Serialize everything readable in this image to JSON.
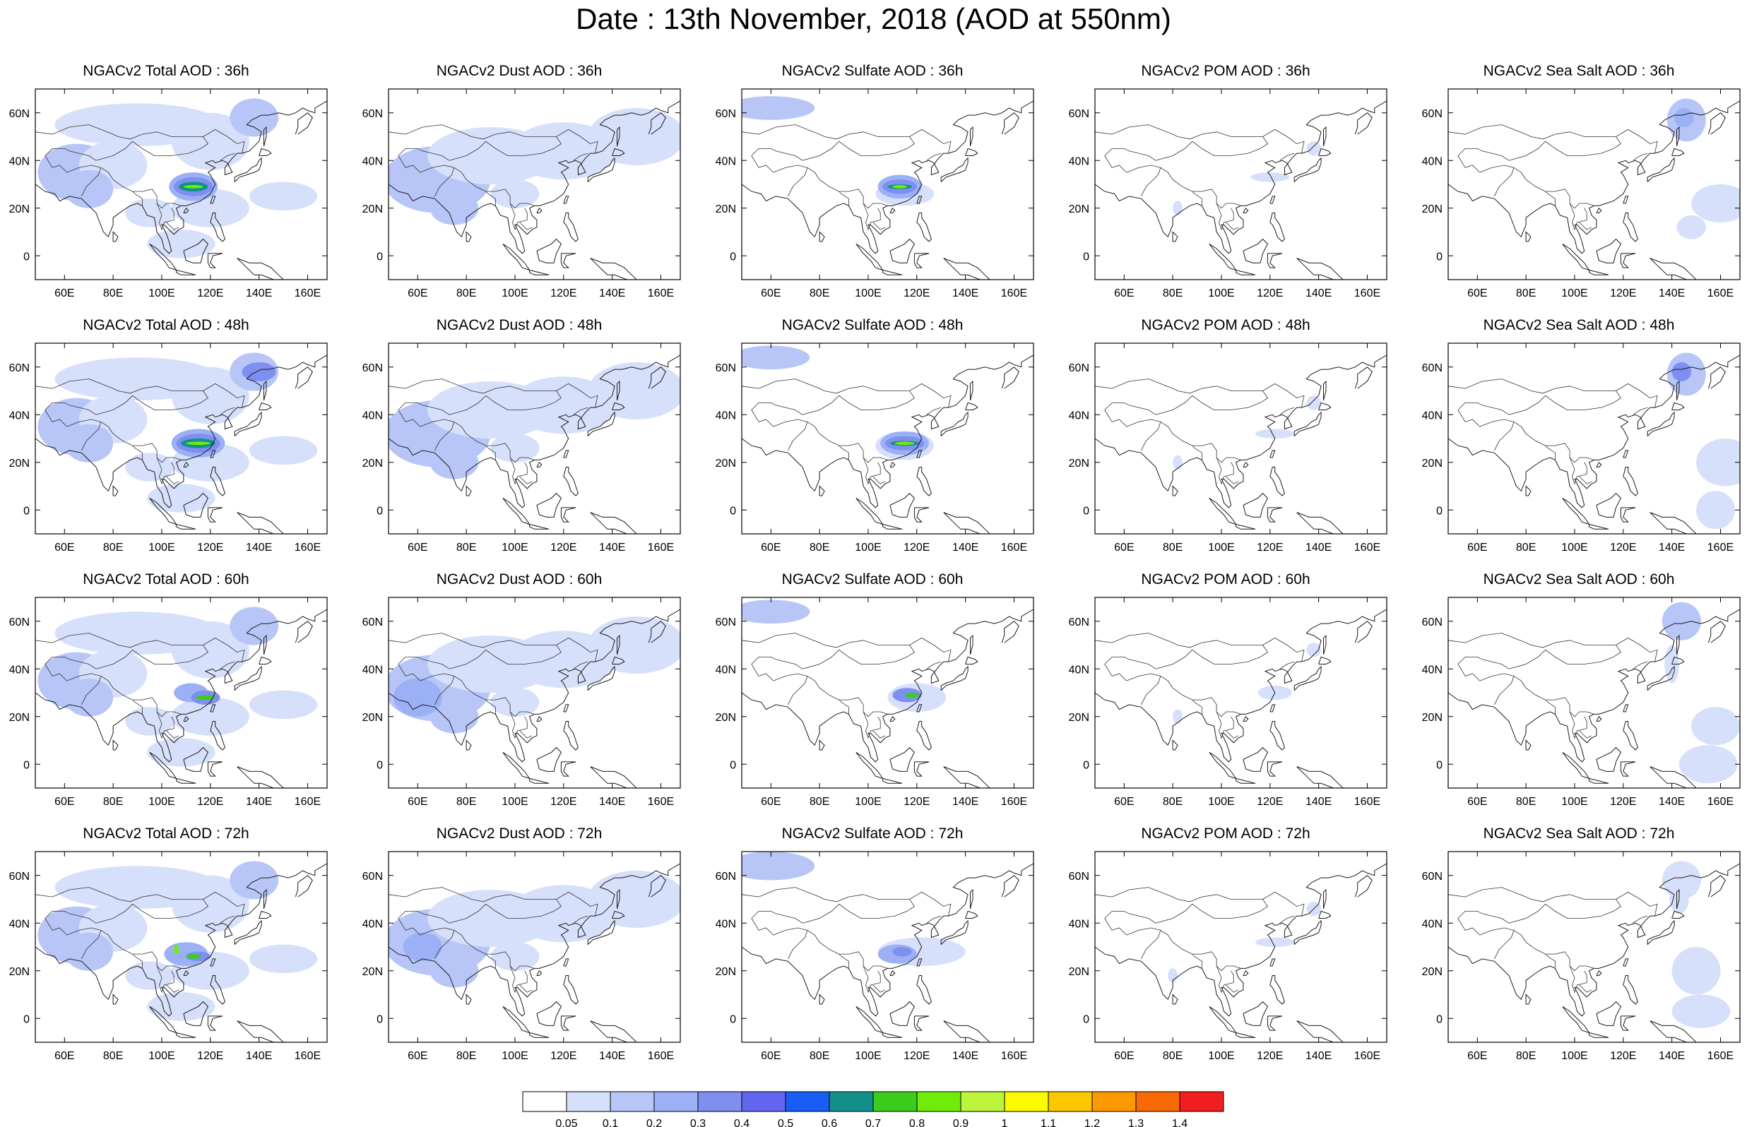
{
  "title": "Date : 13th November, 2018 (AOD at 550nm)",
  "map_axes": {
    "lon_labels": [
      "60E",
      "80E",
      "100E",
      "120E",
      "140E",
      "160E"
    ],
    "lat_labels": [
      "60N",
      "40N",
      "20N",
      "0"
    ],
    "lon_range": [
      48,
      168
    ],
    "lat_range": [
      -10,
      70
    ]
  },
  "panels": [
    {
      "title": "NGACv2 Total AOD : 36h"
    },
    {
      "title": "NGACv2 Dust AOD : 36h"
    },
    {
      "title": "NGACv2 Sulfate AOD : 36h"
    },
    {
      "title": "NGACv2 POM AOD : 36h"
    },
    {
      "title": "NGACv2 Sea Salt AOD : 36h"
    },
    {
      "title": "NGACv2 Total AOD : 48h"
    },
    {
      "title": "NGACv2 Dust AOD : 48h"
    },
    {
      "title": "NGACv2 Sulfate AOD : 48h"
    },
    {
      "title": "NGACv2 POM AOD : 48h"
    },
    {
      "title": "NGACv2 Sea Salt AOD : 48h"
    },
    {
      "title": "NGACv2 Total AOD : 60h"
    },
    {
      "title": "NGACv2 Dust AOD : 60h"
    },
    {
      "title": "NGACv2 Sulfate AOD : 60h"
    },
    {
      "title": "NGACv2 POM AOD : 60h"
    },
    {
      "title": "NGACv2 Sea Salt AOD : 60h"
    },
    {
      "title": "NGACv2 Total AOD : 72h"
    },
    {
      "title": "NGACv2 Dust AOD : 72h"
    },
    {
      "title": "NGACv2 Sulfate AOD : 72h"
    },
    {
      "title": "NGACv2 POM AOD : 72h"
    },
    {
      "title": "NGACv2 Sea Salt  AOD : 72h"
    }
  ],
  "colorbar": {
    "labels": [
      "0.05",
      "0.1",
      "0.2",
      "0.3",
      "0.4",
      "0.5",
      "0.6",
      "0.7",
      "0.8",
      "0.9",
      "1",
      "1.1",
      "1.2",
      "1.3",
      "1.4"
    ],
    "colors": [
      "#ffffff",
      "#d7e0fb",
      "#b7c6f7",
      "#9bb0f5",
      "#7f8ff0",
      "#6265ee",
      "#1a5df5",
      "#139089",
      "#3ccc1c",
      "#70ec0a",
      "#bbf43a",
      "#fafa00",
      "#fbc800",
      "#fb9900",
      "#f86a06",
      "#f01e1e"
    ]
  }
}
